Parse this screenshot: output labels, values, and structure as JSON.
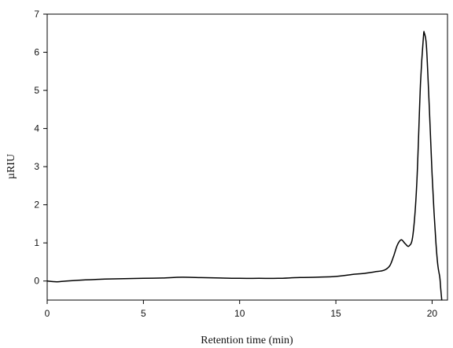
{
  "chart_data": {
    "type": "line",
    "title": "",
    "xlabel": "Retention time (min)",
    "ylabel": "µRIU",
    "xlim": [
      0,
      20.8
    ],
    "ylim": [
      -0.5,
      7
    ],
    "xticks": [
      0,
      5,
      10,
      15,
      20
    ],
    "yticks": [
      0,
      1,
      2,
      3,
      4,
      5,
      6,
      7
    ],
    "grid": false,
    "legend": "none",
    "series": [
      {
        "color": "#000000",
        "x": [
          0,
          0.5,
          1,
          2,
          3,
          4,
          5,
          6,
          7,
          8,
          9,
          10,
          11,
          12,
          13,
          14,
          15,
          16,
          16.5,
          17,
          17.5,
          17.8,
          18.0,
          18.2,
          18.4,
          18.6,
          18.8,
          19.0,
          19.2,
          19.4,
          19.55,
          19.6,
          19.7,
          19.8,
          19.9,
          20.0,
          20.1,
          20.2,
          20.3,
          20.4,
          20.45,
          20.5
        ],
        "y": [
          0.0,
          -0.02,
          0.0,
          0.03,
          0.05,
          0.06,
          0.07,
          0.08,
          0.1,
          0.09,
          0.08,
          0.07,
          0.07,
          0.07,
          0.09,
          0.1,
          0.12,
          0.18,
          0.2,
          0.24,
          0.28,
          0.4,
          0.65,
          0.95,
          1.08,
          0.98,
          0.92,
          1.2,
          2.5,
          5.2,
          6.4,
          6.5,
          6.2,
          5.2,
          4.0,
          2.8,
          1.8,
          1.0,
          0.4,
          0.1,
          -0.2,
          -0.5
        ]
      }
    ]
  }
}
